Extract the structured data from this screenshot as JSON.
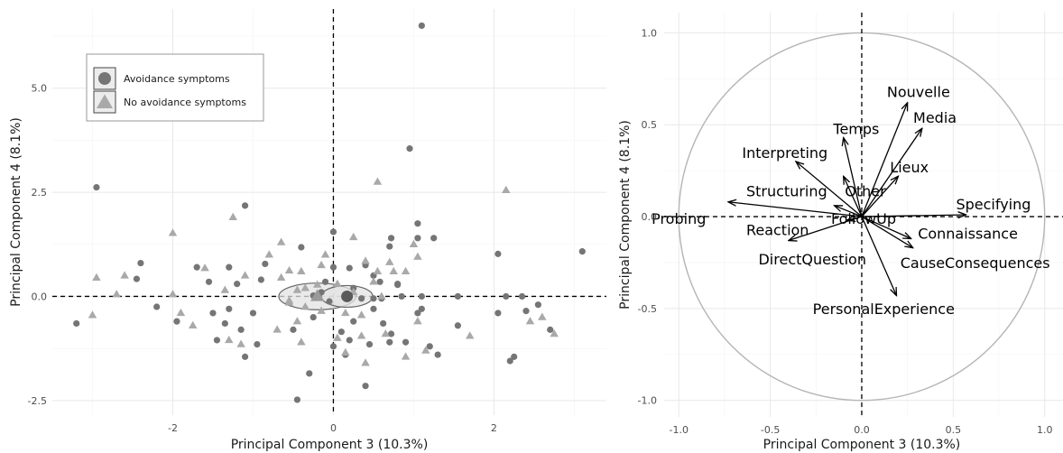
{
  "chart_data": [
    {
      "type": "scatter",
      "xlabel": "Principal Component 3 (10.3%)",
      "ylabel": "Principal Component 4 (8.1%)",
      "xlim": [
        -3.5,
        3.4
      ],
      "ylim": [
        -2.85,
        6.9
      ],
      "xticks": [
        {
          "v": -2,
          "label": "-2"
        },
        {
          "v": 0,
          "label": "0"
        },
        {
          "v": 2,
          "label": "2"
        }
      ],
      "yticks": [
        {
          "v": -2.5,
          "label": "-2.5"
        },
        {
          "v": 0,
          "label": "0.0"
        },
        {
          "v": 2.5,
          "label": "2.5"
        },
        {
          "v": 5,
          "label": "5.0"
        }
      ],
      "grid": true,
      "reference_lines": {
        "x": 0,
        "y": 0
      },
      "legend": {
        "placement": "top-left",
        "entries": [
          {
            "label": "Avoidance symptoms",
            "marker": "circle"
          },
          {
            "label": "No avoidance symptoms",
            "marker": "triangle"
          }
        ]
      },
      "colors": {
        "circle": "#757575",
        "triangle": "#a9a9a9",
        "ellipse_fill": "#e3e3e3",
        "ellipse_stroke": "#666666"
      },
      "series": [
        {
          "name": "Avoidance symptoms",
          "marker": "circle",
          "centroid": [
            0.17,
            0.0
          ],
          "ellipse_radii": [
            0.32,
            0.26
          ],
          "points": [
            [
              1.1,
              6.5
            ],
            [
              0.95,
              3.55
            ],
            [
              -2.95,
              2.62
            ],
            [
              -1.1,
              2.18
            ],
            [
              1.05,
              1.75
            ],
            [
              3.1,
              1.08
            ],
            [
              0.0,
              1.55
            ],
            [
              1.05,
              1.4
            ],
            [
              1.25,
              1.4
            ],
            [
              0.72,
              1.4
            ],
            [
              -0.4,
              1.18
            ],
            [
              0.7,
              1.2
            ],
            [
              2.05,
              1.02
            ],
            [
              -2.4,
              0.8
            ],
            [
              -1.7,
              0.7
            ],
            [
              -0.85,
              0.78
            ],
            [
              0.0,
              0.7
            ],
            [
              0.4,
              0.75
            ],
            [
              0.2,
              0.68
            ],
            [
              0.5,
              0.5
            ],
            [
              -1.3,
              0.7
            ],
            [
              -0.9,
              0.4
            ],
            [
              -1.55,
              0.35
            ],
            [
              -1.2,
              0.3
            ],
            [
              -0.1,
              0.35
            ],
            [
              0.25,
              0.2
            ],
            [
              0.58,
              0.35
            ],
            [
              0.8,
              0.28
            ],
            [
              -2.45,
              0.42
            ],
            [
              -2.2,
              -0.25
            ],
            [
              -1.95,
              -0.6
            ],
            [
              -1.3,
              -0.3
            ],
            [
              -1.5,
              -0.4
            ],
            [
              -1.0,
              -0.4
            ],
            [
              -0.25,
              -0.5
            ],
            [
              0.25,
              -0.6
            ],
            [
              0.5,
              -0.3
            ],
            [
              0.62,
              -0.65
            ],
            [
              1.1,
              -0.3
            ],
            [
              1.05,
              -0.4
            ],
            [
              0.9,
              -1.1
            ],
            [
              1.2,
              -1.2
            ],
            [
              0.72,
              -0.9
            ],
            [
              -1.45,
              -1.05
            ],
            [
              -1.15,
              -0.8
            ],
            [
              -1.35,
              -0.65
            ],
            [
              -0.5,
              -0.8
            ],
            [
              0.1,
              -0.85
            ],
            [
              -0.95,
              -1.15
            ],
            [
              -1.1,
              -1.45
            ],
            [
              0.0,
              -1.2
            ],
            [
              0.2,
              -1.05
            ],
            [
              0.45,
              -1.15
            ],
            [
              -3.2,
              -0.65
            ],
            [
              -0.3,
              -1.85
            ],
            [
              0.4,
              -2.15
            ],
            [
              -0.45,
              -2.48
            ],
            [
              2.05,
              -0.4
            ],
            [
              2.4,
              -0.35
            ],
            [
              2.2,
              -1.55
            ],
            [
              2.25,
              -1.45
            ],
            [
              2.7,
              -0.8
            ],
            [
              1.55,
              -0.7
            ],
            [
              2.55,
              -0.2
            ],
            [
              2.15,
              0.0
            ],
            [
              2.35,
              0.0
            ],
            [
              1.55,
              0.0
            ],
            [
              1.1,
              0.0
            ],
            [
              0.5,
              -0.05
            ],
            [
              0.6,
              -0.05
            ],
            [
              0.35,
              -0.05
            ],
            [
              -0.05,
              -0.12
            ],
            [
              0.15,
              -0.02
            ],
            [
              -0.25,
              0.02
            ],
            [
              -0.15,
              0.1
            ],
            [
              0.85,
              0.0
            ],
            [
              1.3,
              -1.4
            ],
            [
              0.15,
              -1.4
            ],
            [
              0.7,
              -1.1
            ],
            [
              0.8,
              0.3
            ]
          ]
        },
        {
          "name": "No avoidance symptoms",
          "marker": "triangle",
          "centroid": [
            -0.2,
            0.0
          ],
          "ellipse_radii": [
            0.48,
            0.32
          ],
          "points": [
            [
              0.55,
              2.75
            ],
            [
              2.15,
              2.55
            ],
            [
              -1.25,
              1.9
            ],
            [
              -2.0,
              1.52
            ],
            [
              -0.65,
              1.3
            ],
            [
              0.25,
              1.42
            ],
            [
              1.0,
              1.25
            ],
            [
              -0.8,
              1.0
            ],
            [
              -1.6,
              0.68
            ],
            [
              1.05,
              0.95
            ],
            [
              0.7,
              0.82
            ],
            [
              0.4,
              0.85
            ],
            [
              0.75,
              0.6
            ],
            [
              -0.1,
              1.0
            ],
            [
              -0.15,
              0.75
            ],
            [
              -2.95,
              0.45
            ],
            [
              -2.6,
              0.5
            ],
            [
              -0.4,
              0.6
            ],
            [
              0.55,
              0.6
            ],
            [
              -0.55,
              0.62
            ],
            [
              -1.1,
              0.5
            ],
            [
              -2.7,
              0.05
            ],
            [
              -2.0,
              0.05
            ],
            [
              -1.35,
              0.15
            ],
            [
              -0.2,
              0.28
            ],
            [
              -0.35,
              0.2
            ],
            [
              0.5,
              0.35
            ],
            [
              -0.55,
              -0.15
            ],
            [
              -1.9,
              -0.4
            ],
            [
              -1.75,
              -0.7
            ],
            [
              -0.15,
              -0.35
            ],
            [
              0.35,
              -0.45
            ],
            [
              -0.45,
              -0.6
            ],
            [
              -3.0,
              -0.45
            ],
            [
              -1.3,
              -1.05
            ],
            [
              -1.15,
              -1.15
            ],
            [
              -0.7,
              -0.8
            ],
            [
              -0.4,
              -1.1
            ],
            [
              0.05,
              -1.0
            ],
            [
              0.35,
              -0.95
            ],
            [
              0.65,
              -0.9
            ],
            [
              1.05,
              -0.6
            ],
            [
              1.7,
              -0.95
            ],
            [
              2.45,
              -0.6
            ],
            [
              2.6,
              -0.5
            ],
            [
              2.75,
              -0.9
            ],
            [
              0.9,
              -1.45
            ],
            [
              1.15,
              -1.3
            ],
            [
              0.15,
              -1.35
            ],
            [
              0.4,
              -1.6
            ],
            [
              -0.35,
              -0.25
            ],
            [
              0.25,
              0.1
            ],
            [
              -0.45,
              0.15
            ],
            [
              0.6,
              0.0
            ],
            [
              -0.55,
              -0.1
            ],
            [
              -0.65,
              0.45
            ],
            [
              0.05,
              0.3
            ],
            [
              0.9,
              0.6
            ],
            [
              0.15,
              -0.4
            ]
          ]
        }
      ]
    },
    {
      "type": "variable-correlation-circle",
      "xlabel": "Principal Component 3 (10.3%)",
      "ylabel": "Principal Component 4 (8.1%)",
      "xlim": [
        -1.08,
        1.1
      ],
      "ylim": [
        -1.09,
        1.11
      ],
      "xticks": [
        {
          "v": -1,
          "label": "-1.0"
        },
        {
          "v": -0.5,
          "label": "-0.5"
        },
        {
          "v": 0,
          "label": "0.0"
        },
        {
          "v": 0.5,
          "label": "0.5"
        },
        {
          "v": 1,
          "label": "1.0"
        }
      ],
      "yticks": [
        {
          "v": -1,
          "label": "-1.0"
        },
        {
          "v": -0.5,
          "label": "-0.5"
        },
        {
          "v": 0,
          "label": "0.0"
        },
        {
          "v": 0.5,
          "label": "0.5"
        },
        {
          "v": 1,
          "label": "1.0"
        }
      ],
      "grid": true,
      "reference_lines": {
        "x": 0,
        "y": 0
      },
      "unit_circle": true,
      "colors": {
        "circle": "#b5b5b5",
        "arrow": "#000000"
      },
      "variables": [
        {
          "name": "Nouvelle",
          "x": 0.25,
          "y": 0.62,
          "lx": 0.31,
          "ly": 0.68
        },
        {
          "name": "Media",
          "x": 0.33,
          "y": 0.48,
          "lx": 0.4,
          "ly": 0.54
        },
        {
          "name": "Temps",
          "x": -0.1,
          "y": 0.43,
          "lx": -0.03,
          "ly": 0.48
        },
        {
          "name": "Interpreting",
          "x": -0.36,
          "y": 0.3,
          "lx": -0.42,
          "ly": 0.35
        },
        {
          "name": "Lieux",
          "x": 0.2,
          "y": 0.22,
          "lx": 0.26,
          "ly": 0.27
        },
        {
          "name": "Other",
          "x": -0.1,
          "y": 0.22,
          "lx": 0.02,
          "ly": 0.14
        },
        {
          "name": "Structuring",
          "x": -0.15,
          "y": 0.06,
          "lx": -0.41,
          "ly": 0.14
        },
        {
          "name": "Specifying",
          "x": 0.57,
          "y": 0.01,
          "lx": 0.72,
          "ly": 0.07
        },
        {
          "name": "Probing",
          "x": -0.73,
          "y": 0.08,
          "lx": -1.0,
          "ly": -0.01
        },
        {
          "name": "FollowUp",
          "x": 0.01,
          "y": 0.02,
          "lx": 0.01,
          "ly": -0.01
        },
        {
          "name": "Reaction",
          "x": -0.08,
          "y": -0.02,
          "lx": -0.46,
          "ly": -0.07
        },
        {
          "name": "Connaissance",
          "x": 0.27,
          "y": -0.12,
          "lx": 0.58,
          "ly": -0.09
        },
        {
          "name": "DirectQuestion",
          "x": -0.4,
          "y": -0.13,
          "lx": -0.27,
          "ly": -0.23
        },
        {
          "name": "CauseConsequences",
          "x": 0.28,
          "y": -0.17,
          "lx": 0.62,
          "ly": -0.25
        },
        {
          "name": "PersonalExperience",
          "x": 0.19,
          "y": -0.43,
          "lx": 0.12,
          "ly": -0.5
        }
      ]
    }
  ]
}
